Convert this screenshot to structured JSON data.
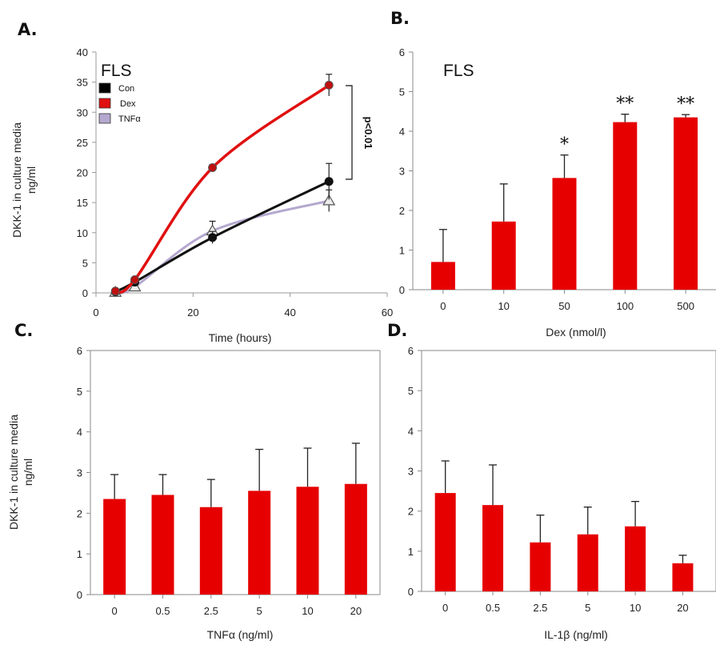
{
  "chart_data": [
    {
      "panel_label": "A.",
      "type": "line",
      "inset_label": "FLS",
      "xlabel": "Time (hours)",
      "ylabel": "DKK-1 in culture media ng/ml",
      "xlim": [
        0,
        60
      ],
      "ylim": [
        0,
        40
      ],
      "xticks": [
        0,
        20,
        40,
        60
      ],
      "yticks": [
        0,
        5,
        10,
        15,
        20,
        25,
        30,
        35,
        40
      ],
      "legend_position": "top-left",
      "annotation": "p<0.01",
      "series": [
        {
          "name": "Con",
          "color": "#111111",
          "marker": "circle",
          "x": [
            4,
            8,
            24,
            48
          ],
          "y": [
            0.2,
            1.8,
            9.2,
            18.5
          ],
          "err": [
            0.3,
            0.5,
            1.0,
            3.0
          ]
        },
        {
          "name": "Dex",
          "color": "#e01010",
          "marker": "circle",
          "x": [
            4,
            8,
            24,
            48
          ],
          "y": [
            0.3,
            2.2,
            20.8,
            34.5
          ],
          "err": [
            0.3,
            0.4,
            0.5,
            1.8
          ]
        },
        {
          "name": "TNFα",
          "color": "#b5a8cf",
          "marker": "triangle",
          "x": [
            4,
            8,
            24,
            48
          ],
          "y": [
            0.1,
            1.0,
            10.3,
            15.3
          ],
          "err": [
            0.2,
            0.3,
            1.6,
            1.8
          ]
        }
      ]
    },
    {
      "panel_label": "B.",
      "type": "bar",
      "inset_label": "FLS",
      "xlabel": "Dex (nmol/l)",
      "ylabel": "",
      "ylim": [
        0,
        6
      ],
      "yticks": [
        0,
        1,
        2,
        3,
        4,
        5,
        6
      ],
      "categories": [
        "0",
        "10",
        "50",
        "100",
        "500"
      ],
      "values": [
        0.7,
        1.72,
        2.82,
        4.23,
        4.35
      ],
      "errors": [
        0.82,
        0.95,
        0.58,
        0.2,
        0.07
      ],
      "significance": [
        "",
        "",
        "*",
        "**",
        "**"
      ],
      "color": "#e60000"
    },
    {
      "panel_label": "C.",
      "type": "bar",
      "xlabel": "TNFα (ng/ml)",
      "ylabel": "DKK-1 in culture media ng/ml",
      "ylim": [
        0,
        6
      ],
      "yticks": [
        0,
        1,
        2,
        3,
        4,
        5,
        6
      ],
      "categories": [
        "0",
        "0.5",
        "2.5",
        "5",
        "10",
        "20"
      ],
      "values": [
        2.35,
        2.45,
        2.15,
        2.55,
        2.65,
        2.72
      ],
      "errors": [
        0.6,
        0.5,
        0.68,
        1.02,
        0.95,
        1.0
      ],
      "color": "#e60000"
    },
    {
      "panel_label": "D.",
      "type": "bar",
      "xlabel": "IL-1β (ng/ml)",
      "ylabel": "",
      "ylim": [
        0,
        6
      ],
      "yticks": [
        0,
        1,
        2,
        3,
        4,
        5,
        6
      ],
      "categories": [
        "0",
        "0.5",
        "2.5",
        "5",
        "10",
        "20"
      ],
      "values": [
        2.45,
        2.15,
        1.22,
        1.42,
        1.62,
        0.7
      ],
      "errors": [
        0.8,
        1.0,
        0.68,
        0.68,
        0.62,
        0.2
      ],
      "color": "#e60000"
    }
  ]
}
